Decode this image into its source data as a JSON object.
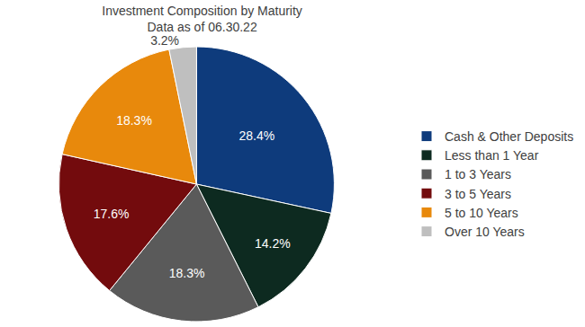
{
  "chart_data": {
    "type": "pie",
    "title": "Investment Composition by Maturity",
    "subtitle": "Data as of 06.30.22",
    "categories": [
      "Cash & Other Deposits",
      "Less than 1 Year",
      "1 to 3 Years",
      "3 to 5 Years",
      "5 to 10 Years",
      "Over 10 Years"
    ],
    "values": [
      28.4,
      14.2,
      18.3,
      17.6,
      18.3,
      3.2
    ],
    "value_labels": [
      "28.4%",
      "14.2%",
      "18.3%",
      "17.6%",
      "18.3%",
      "3.2%"
    ],
    "colors": [
      "#0e3b7c",
      "#0d2a20",
      "#5a5a5a",
      "#730b0d",
      "#e8890c",
      "#bfbfbf"
    ],
    "data_labels": true,
    "legend": "right"
  }
}
